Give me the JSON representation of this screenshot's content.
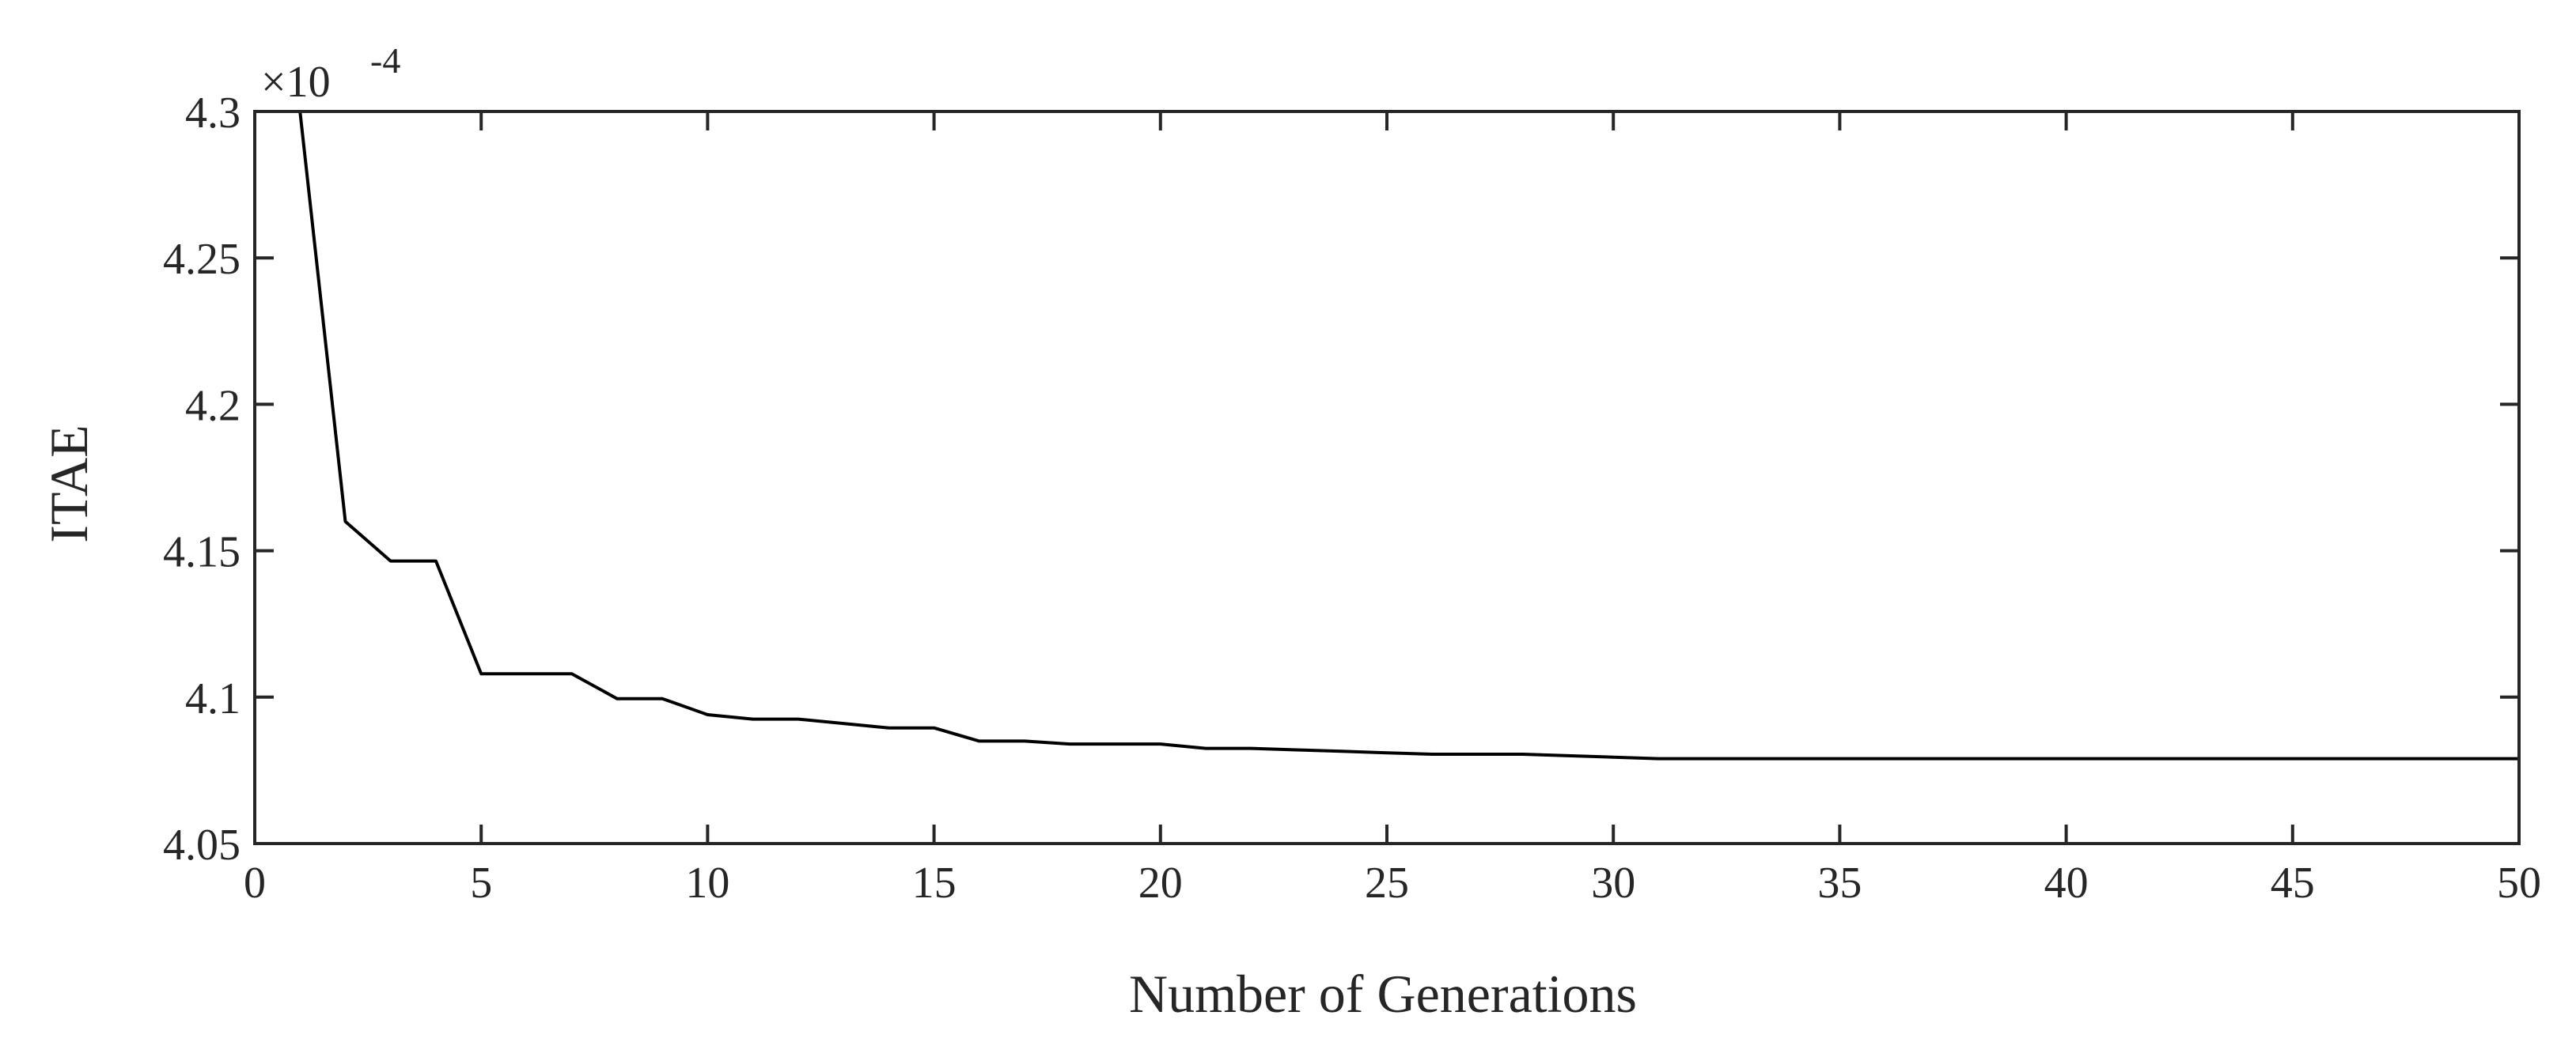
{
  "chart_data": {
    "type": "line",
    "xlabel": "Number of Generations",
    "ylabel": "ITAE",
    "xlim": [
      0,
      50
    ],
    "ylim": [
      4.05,
      4.3
    ],
    "xticks": [
      0,
      5,
      10,
      15,
      20,
      25,
      30,
      35,
      40,
      45,
      50
    ],
    "xtick_labels": [
      "0",
      "5",
      "10",
      "15",
      "20",
      "25",
      "30",
      "35",
      "40",
      "45",
      "50"
    ],
    "yticks": [
      4.05,
      4.1,
      4.15,
      4.2,
      4.25,
      4.3
    ],
    "ytick_labels": [
      "4.05",
      "4.1",
      "4.15",
      "4.2",
      "4.25",
      "4.3"
    ],
    "y_multiplier_base": "×10",
    "y_multiplier_exponent": "-4",
    "grid": false,
    "series": [
      {
        "x": [
          1,
          2,
          3,
          4,
          5,
          6,
          7,
          8,
          9,
          10,
          11,
          12,
          13,
          14,
          15,
          16,
          17,
          18,
          19,
          20,
          21,
          22,
          23,
          24,
          25,
          26,
          27,
          28,
          29,
          30,
          31,
          32,
          33,
          34,
          35,
          36,
          37,
          38,
          39,
          40,
          41,
          42,
          43,
          44,
          45,
          46,
          47,
          48,
          49,
          50
        ],
        "values": [
          4.3,
          4.16,
          4.1465,
          4.1465,
          4.108,
          4.108,
          4.108,
          4.0995,
          4.0995,
          4.094,
          4.0925,
          4.0925,
          4.091,
          4.0895,
          4.0895,
          4.085,
          4.085,
          4.084,
          4.084,
          4.084,
          4.0825,
          4.0825,
          4.082,
          4.0815,
          4.081,
          4.0805,
          4.0805,
          4.0805,
          4.08,
          4.0795,
          4.079,
          4.079,
          4.079,
          4.079,
          4.079,
          4.079,
          4.079,
          4.079,
          4.079,
          4.079,
          4.079,
          4.079,
          4.079,
          4.079,
          4.079,
          4.079,
          4.079,
          4.079,
          4.079,
          4.079
        ]
      }
    ]
  }
}
